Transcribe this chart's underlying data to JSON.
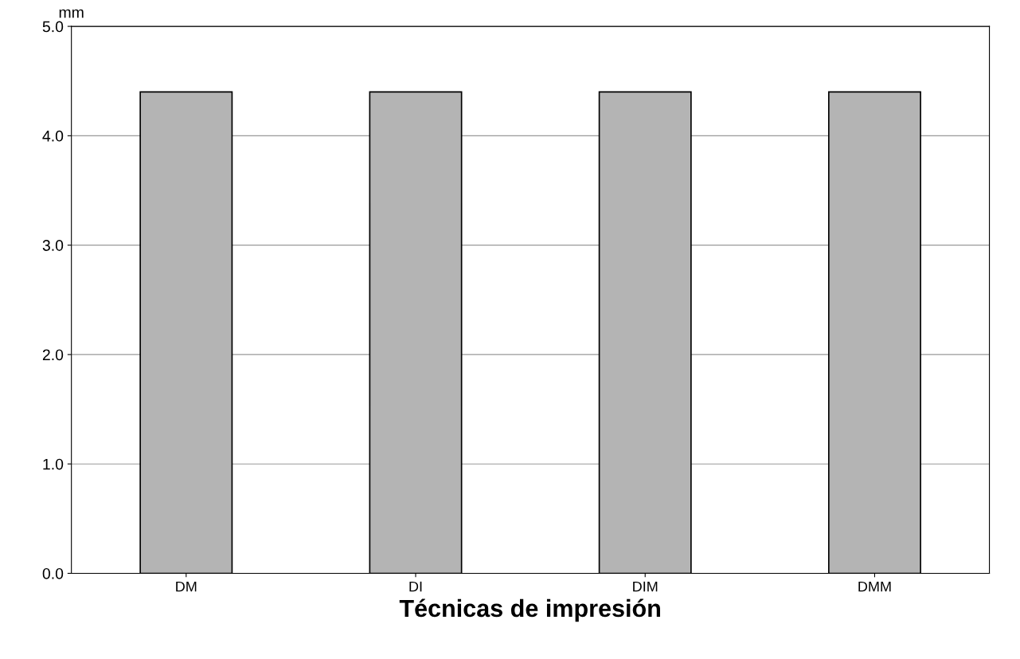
{
  "chart_data": {
    "type": "bar",
    "xlabel": "Técnicas de impresión",
    "ylabel": "mm",
    "categories": [
      "DM",
      "DI",
      "DIM",
      "DMM"
    ],
    "values": [
      4.4,
      4.4,
      4.4,
      4.4
    ],
    "color": "#b4b4b4",
    "ylim": [
      0,
      5
    ],
    "yticks": [
      {
        "value": 0,
        "label": "0.0"
      },
      {
        "value": 1,
        "label": "1.0"
      },
      {
        "value": 2,
        "label": "2.0"
      },
      {
        "value": 3,
        "label": "3.0"
      },
      {
        "value": 4,
        "label": "4.0"
      },
      {
        "value": 5,
        "label": "5.0"
      }
    ],
    "grid": "y"
  }
}
